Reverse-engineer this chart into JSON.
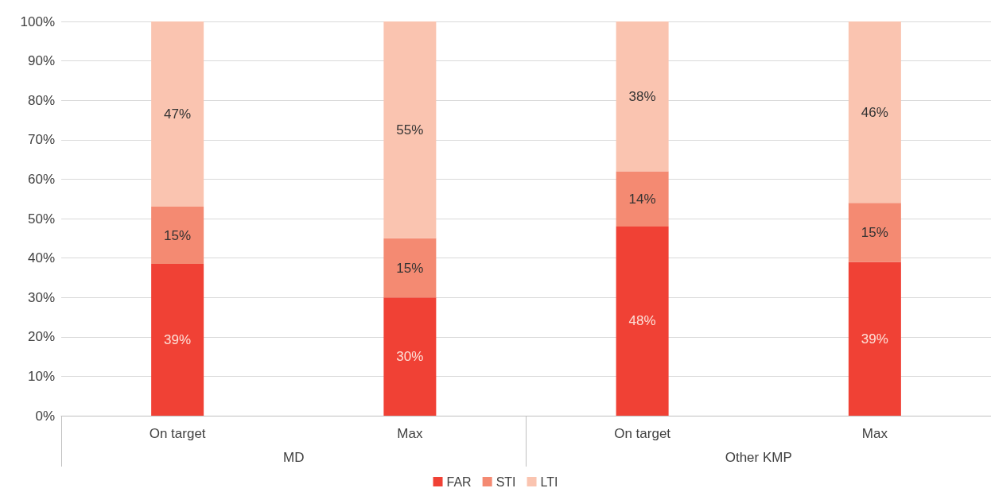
{
  "chart_data": {
    "type": "bar",
    "stacked": true,
    "categories": [
      "On target",
      "Max",
      "On target",
      "Max"
    ],
    "series": [
      {
        "name": "FAR",
        "color": "#f04135",
        "values": [
          38.5,
          30,
          48,
          39
        ],
        "value_labels": [
          "39%",
          "30%",
          "48%",
          "39%"
        ]
      },
      {
        "name": "STI",
        "color": "#f48a72",
        "values": [
          14.5,
          15,
          14,
          15
        ],
        "value_labels": [
          "15%",
          "15%",
          "14%",
          "15%"
        ]
      },
      {
        "name": "LTI",
        "color": "#fac4b0",
        "values": [
          47,
          55,
          38,
          46
        ],
        "value_labels": [
          "47%",
          "55%",
          "38%",
          "46%"
        ]
      }
    ],
    "annotations": [
      "MD",
      "Other KMP"
    ],
    "ylim": [
      0,
      100
    ],
    "yticks": [
      {
        "value": 0,
        "label": "0%"
      },
      {
        "value": 10,
        "label": "10%"
      },
      {
        "value": 20,
        "label": "20%"
      },
      {
        "value": 30,
        "label": "30%"
      },
      {
        "value": 40,
        "label": "40%"
      },
      {
        "value": 50,
        "label": "50%"
      },
      {
        "value": 60,
        "label": "60%"
      },
      {
        "value": 70,
        "label": "70%"
      },
      {
        "value": 80,
        "label": "80%"
      },
      {
        "value": 90,
        "label": "90%"
      },
      {
        "value": 100,
        "label": "100%"
      }
    ],
    "grid": "y",
    "legend": "bottom"
  }
}
